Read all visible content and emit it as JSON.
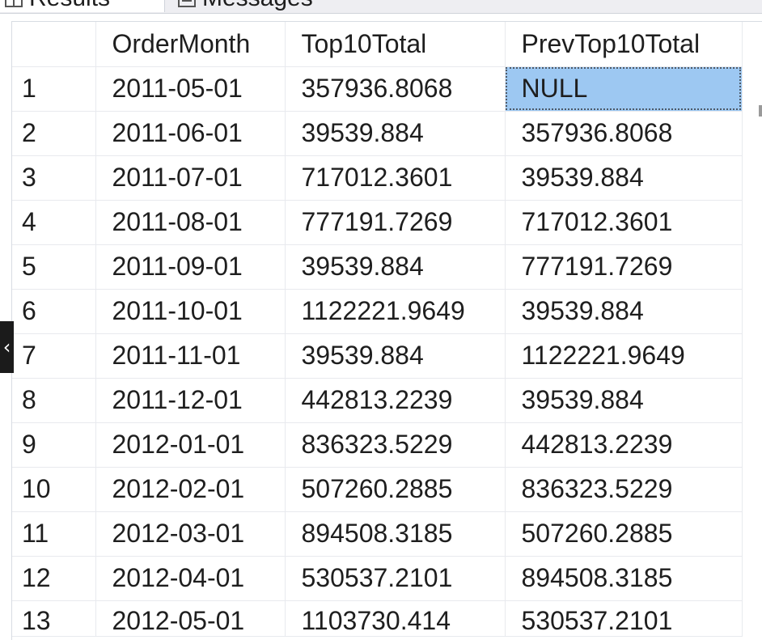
{
  "tabs": [
    {
      "label": "Results",
      "icon": "grid-icon",
      "active": true
    },
    {
      "label": "Messages",
      "icon": "messages-icon",
      "active": false
    }
  ],
  "grid": {
    "columns": [
      "",
      "OrderMonth",
      "Top10Total",
      "PrevTop10Total"
    ],
    "rows": [
      [
        "1",
        "2011-05-01",
        "357936.8068",
        "NULL"
      ],
      [
        "2",
        "2011-06-01",
        "39539.884",
        "357936.8068"
      ],
      [
        "3",
        "2011-07-01",
        "717012.3601",
        "39539.884"
      ],
      [
        "4",
        "2011-08-01",
        "777191.7269",
        "717012.3601"
      ],
      [
        "5",
        "2011-09-01",
        "39539.884",
        "777191.7269"
      ],
      [
        "6",
        "2011-10-01",
        "1122221.9649",
        "39539.884"
      ],
      [
        "7",
        "2011-11-01",
        "39539.884",
        "1122221.9649"
      ],
      [
        "8",
        "2011-12-01",
        "442813.2239",
        "39539.884"
      ],
      [
        "9",
        "2012-01-01",
        "836323.5229",
        "442813.2239"
      ],
      [
        "10",
        "2012-02-01",
        "507260.2885",
        "836323.5229"
      ],
      [
        "11",
        "2012-03-01",
        "894508.3185",
        "507260.2885"
      ],
      [
        "12",
        "2012-04-01",
        "530537.2101",
        "894508.3185"
      ],
      [
        "13",
        "2012-05-01",
        "1103730.414",
        "530537.2101"
      ]
    ],
    "selected_cell": {
      "row": 0,
      "col": 3
    }
  },
  "colors": {
    "selection": "#9dc8f2",
    "grid_line": "#e8eaee",
    "tab_bar": "#eeeef2"
  }
}
